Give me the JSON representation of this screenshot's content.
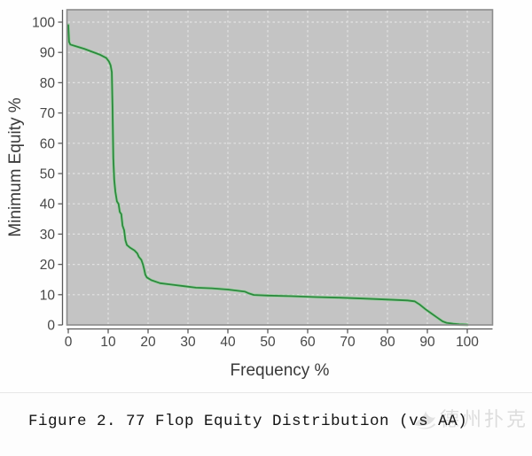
{
  "chart_data": {
    "type": "line",
    "title": "",
    "xlabel": "Frequency %",
    "ylabel": "Minimum Equity %",
    "xlim": [
      0,
      106
    ],
    "ylim": [
      0,
      104
    ],
    "x_ticks": [
      0,
      10,
      20,
      30,
      40,
      50,
      60,
      70,
      80,
      90,
      100
    ],
    "y_ticks": [
      0,
      10,
      20,
      30,
      40,
      50,
      60,
      70,
      80,
      90,
      100
    ],
    "grid": "white-dashed",
    "legend": "none",
    "plot_bg_color": "#c4c4c4",
    "grid_color": "#e3e3e3",
    "border_color": "#8c8c8c",
    "axis_color": "#5a5a5a",
    "tick_label_color": "#474747",
    "axis_title_color": "#3a3a3a",
    "series": [
      {
        "name": "77 flop equity distribution vs AA",
        "color": "#2b8a3d",
        "halo_color": "#9ed0a2",
        "points": [
          [
            0,
            99
          ],
          [
            0.2,
            93.5
          ],
          [
            0.5,
            92.6
          ],
          [
            2,
            92
          ],
          [
            4,
            91.2
          ],
          [
            6,
            90.2
          ],
          [
            8,
            89.2
          ],
          [
            9.5,
            88.2
          ],
          [
            10.2,
            87
          ],
          [
            10.6,
            85.8
          ],
          [
            10.9,
            83.5
          ],
          [
            11.1,
            72
          ],
          [
            11.3,
            55
          ],
          [
            11.5,
            48
          ],
          [
            11.8,
            44
          ],
          [
            12.2,
            40.8
          ],
          [
            12.6,
            40
          ],
          [
            12.9,
            37.3
          ],
          [
            13.3,
            36.6
          ],
          [
            13.6,
            32.8
          ],
          [
            14,
            31.3
          ],
          [
            14.3,
            28
          ],
          [
            14.7,
            26.4
          ],
          [
            15.5,
            25.5
          ],
          [
            16.6,
            24.6
          ],
          [
            17.3,
            23.6
          ],
          [
            17.7,
            22.5
          ],
          [
            18.3,
            21.5
          ],
          [
            18.7,
            20.1
          ],
          [
            19,
            18.5
          ],
          [
            19.3,
            16.6
          ],
          [
            19.7,
            15.7
          ],
          [
            20.8,
            14.8
          ],
          [
            23,
            13.8
          ],
          [
            26,
            13.3
          ],
          [
            29,
            12.8
          ],
          [
            32,
            12.3
          ],
          [
            36,
            12.1
          ],
          [
            40,
            11.7
          ],
          [
            44.3,
            11
          ],
          [
            45.3,
            10.4
          ],
          [
            46.5,
            9.9
          ],
          [
            50,
            9.7
          ],
          [
            56,
            9.5
          ],
          [
            62,
            9.2
          ],
          [
            68,
            9
          ],
          [
            74,
            8.7
          ],
          [
            80,
            8.4
          ],
          [
            85,
            8.1
          ],
          [
            86.8,
            7.8
          ],
          [
            88,
            6.8
          ],
          [
            89.5,
            5.2
          ],
          [
            91,
            3.8
          ],
          [
            92.5,
            2.4
          ],
          [
            93.8,
            1.2
          ],
          [
            94.8,
            0.7
          ],
          [
            96.5,
            0.4
          ],
          [
            98,
            0.2
          ],
          [
            100,
            0.1
          ]
        ]
      }
    ]
  },
  "figure": {
    "caption": "Figure 2. 77 Flop Equity Distribution (vs AA)"
  },
  "watermark": {
    "text": "德州扑克",
    "logo": "swan-logo"
  }
}
